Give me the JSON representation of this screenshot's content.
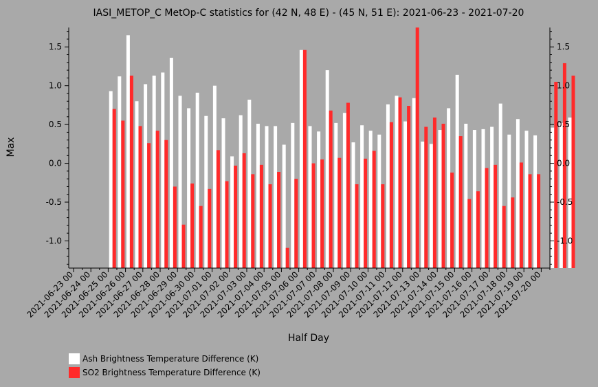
{
  "chart_data": {
    "type": "bar",
    "title": "IASI_METOP_C MetOp-C statistics for (42 N, 48 E) - (45 N, 51 E): 2021-06-23 - 2021-07-20",
    "xlabel": "Half Day",
    "ylabel": "Max",
    "ylim": [
      -1.35,
      1.75
    ],
    "yticks": [
      "1.5",
      "1.0",
      "0.5",
      "0.0",
      "-0.5",
      "-1.0"
    ],
    "ytick_values": [
      1.5,
      1.0,
      0.5,
      0.0,
      -0.5,
      -1.0
    ],
    "xtick_labels": [
      "2021-06-23 00",
      "2021-06-24 00",
      "2021-06-25 00",
      "2021-06-26 00",
      "2021-06-27 00",
      "2021-06-28 00",
      "2021-06-29 00",
      "2021-06-30 00",
      "2021-07-01 00",
      "2021-07-02 00",
      "2021-07-03 00",
      "2021-07-04 00",
      "2021-07-05 00",
      "2021-07-06 00",
      "2021-07-07 00",
      "2021-07-08 00",
      "2021-07-09 00",
      "2021-07-10 00",
      "2021-07-11 00",
      "2021-07-12 00",
      "2021-07-13 00",
      "2021-07-14 00",
      "2021-07-15 00",
      "2021-07-16 00",
      "2021-07-17 00",
      "2021-07-18 00",
      "2021-07-19 00",
      "2021-07-20 00"
    ],
    "series": [
      {
        "name": "Ash Brightness Temperature Difference (K)",
        "color": "#ffffff",
        "values": [
          null,
          null,
          null,
          null,
          0.93,
          1.12,
          1.65,
          0.8,
          1.02,
          1.13,
          1.17,
          1.36,
          0.87,
          0.71,
          0.91,
          0.61,
          1.0,
          0.58,
          0.09,
          0.62,
          0.82,
          0.51,
          0.48,
          0.48,
          0.24,
          0.52,
          1.46,
          0.48,
          0.41,
          1.2,
          0.52,
          0.65,
          0.27,
          0.49,
          0.42,
          0.37,
          0.76,
          0.87,
          0.54,
          0.84,
          0.28,
          0.25,
          0.43,
          0.71,
          1.14,
          0.51,
          0.43,
          0.44,
          0.47,
          0.77,
          0.37,
          0.57,
          0.42,
          0.36,
          null,
          0.46,
          0.52,
          0.59
        ]
      },
      {
        "name": "SO2 Brightness Temperature Difference (K)",
        "color": "#ff2a2a",
        "values": [
          null,
          null,
          null,
          null,
          0.7,
          0.55,
          1.13,
          0.48,
          0.26,
          0.42,
          0.3,
          -0.3,
          -0.79,
          -0.26,
          -0.55,
          -0.33,
          0.17,
          -0.23,
          -0.03,
          0.13,
          -0.14,
          -0.02,
          -0.27,
          -0.11,
          -1.09,
          -0.2,
          1.46,
          0.0,
          0.05,
          0.68,
          0.07,
          0.78,
          -0.27,
          0.06,
          0.16,
          -0.27,
          0.53,
          0.85,
          0.74,
          1.77,
          0.47,
          0.59,
          0.51,
          -0.12,
          0.35,
          -0.46,
          -0.36,
          -0.06,
          -0.02,
          -0.55,
          -0.44,
          0.01,
          -0.14,
          -0.14,
          null,
          1.05,
          1.29,
          1.13
        ]
      }
    ],
    "legend_position": "bottom-left",
    "grid": false
  }
}
